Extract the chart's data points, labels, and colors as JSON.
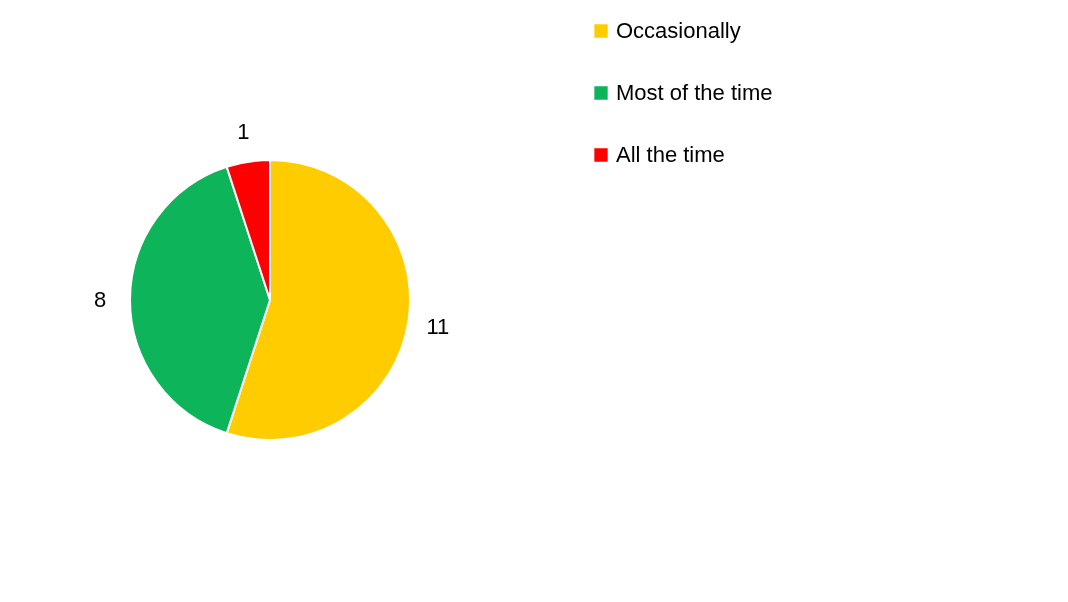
{
  "chart_data": {
    "type": "pie",
    "categories": [
      "Occasionally",
      "Most of the time",
      "All the time"
    ],
    "values": [
      11,
      8,
      1
    ],
    "colors": [
      "#ffcc00",
      "#0db45a",
      "#ff0000"
    ],
    "data_labels": true,
    "legend": "right"
  }
}
